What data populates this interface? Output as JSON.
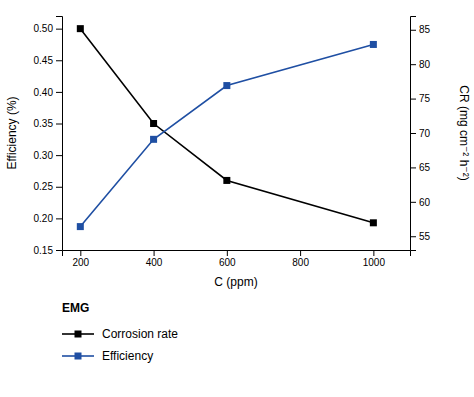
{
  "chart_data": {
    "type": "line",
    "x_label": "C (ppm)",
    "y_label": "Efficiency (%)",
    "y2_label": "CR (mg cm⁻² h⁻²)",
    "x": [
      200,
      400,
      600,
      1000
    ],
    "series": [
      {
        "name": "Corrosion rate",
        "color": "#000000",
        "marker": "square",
        "axis": "y",
        "values": [
          0.5,
          0.35,
          0.26,
          0.193
        ]
      },
      {
        "name": "Efficiency",
        "color": "#1f4fa3",
        "marker": "square",
        "axis": "y",
        "values": [
          0.187,
          0.325,
          0.41,
          0.475
        ]
      }
    ],
    "xlim": [
      150,
      1100
    ],
    "xticks": [
      200,
      400,
      600,
      800,
      1000
    ],
    "ylim": [
      0.15,
      0.52
    ],
    "yticks": [
      0.15,
      {
        "value": 0.2,
        "label": "0.20"
      },
      0.25,
      {
        "value": 0.3,
        "label": "0.30"
      },
      0.35,
      {
        "value": 0.4,
        "label": "0.40"
      },
      0.45,
      {
        "value": 0.5,
        "label": "0.50"
      }
    ],
    "y2lim": [
      53,
      87
    ],
    "y2ticks": [
      55,
      60,
      65,
      70,
      75,
      80,
      85
    ],
    "legend": "bottom",
    "legend_title": "EMG",
    "grid": false
  }
}
